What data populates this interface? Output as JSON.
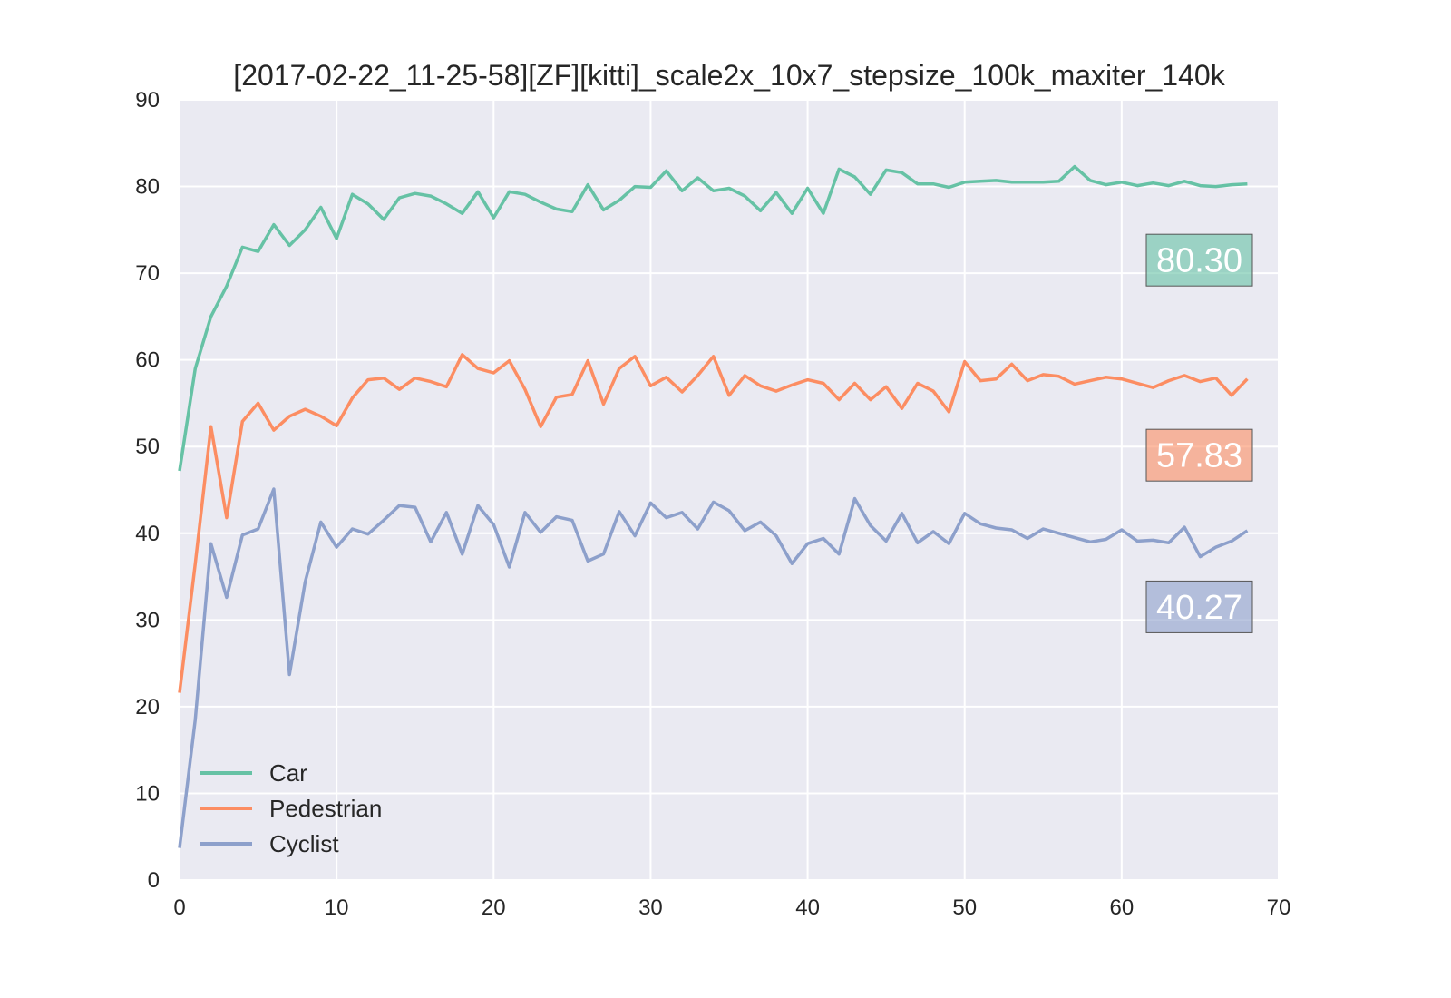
{
  "chart_data": {
    "type": "line",
    "title": "[2017-02-22_11-25-58][ZF][kitti]_scale2x_10x7_stepsize_100k_maxiter_140k",
    "xlabel": "",
    "ylabel": "",
    "xlim": [
      0,
      70
    ],
    "ylim": [
      0,
      90
    ],
    "x_ticks": [
      "0",
      "10",
      "20",
      "30",
      "40",
      "50",
      "60",
      "70"
    ],
    "y_ticks": [
      "0",
      "10",
      "20",
      "30",
      "40",
      "50",
      "60",
      "70",
      "80",
      "90"
    ],
    "grid": true,
    "legend_position": "bottom-left",
    "x": [
      0,
      1,
      2,
      3,
      4,
      5,
      6,
      7,
      8,
      9,
      10,
      11,
      12,
      13,
      14,
      15,
      16,
      17,
      18,
      19,
      20,
      21,
      22,
      23,
      24,
      25,
      26,
      27,
      28,
      29,
      30,
      31,
      32,
      33,
      34,
      35,
      36,
      37,
      38,
      39,
      40,
      41,
      42,
      43,
      44,
      45,
      46,
      47,
      48,
      49,
      50,
      51,
      52,
      53,
      54,
      55,
      56,
      57,
      58,
      59,
      60,
      61,
      62,
      63,
      64,
      65,
      66,
      67,
      68
    ],
    "series": [
      {
        "name": "Car",
        "color": "#66c2a5",
        "final_label": "80.30",
        "values": [
          47.2,
          59.0,
          65.0,
          68.5,
          73.0,
          72.5,
          75.6,
          73.2,
          75.0,
          77.6,
          74.0,
          79.1,
          78.0,
          76.2,
          78.7,
          79.2,
          78.9,
          78.0,
          76.9,
          79.4,
          76.4,
          79.4,
          79.1,
          78.2,
          77.4,
          77.1,
          80.2,
          77.3,
          78.4,
          80.0,
          79.9,
          81.8,
          79.5,
          81.0,
          79.5,
          79.8,
          78.9,
          77.2,
          79.3,
          76.9,
          79.8,
          76.9,
          82.0,
          81.1,
          79.1,
          81.9,
          81.6,
          80.3,
          80.3,
          79.9,
          80.5,
          80.6,
          80.7,
          80.5,
          80.5,
          80.5,
          80.6,
          82.3,
          80.7,
          80.2,
          80.5,
          80.1,
          80.4,
          80.1,
          80.6,
          80.1,
          80.0,
          80.2,
          80.3
        ]
      },
      {
        "name": "Pedestrian",
        "color": "#fc8d62",
        "final_label": "57.83",
        "values": [
          21.6,
          36.5,
          52.3,
          41.8,
          52.9,
          55.0,
          51.9,
          53.5,
          54.3,
          53.5,
          52.4,
          55.6,
          57.7,
          57.9,
          56.6,
          57.9,
          57.5,
          56.9,
          60.6,
          59.0,
          58.5,
          59.9,
          56.6,
          52.3,
          55.7,
          56.0,
          59.9,
          54.9,
          59.0,
          60.4,
          57.0,
          58.0,
          56.3,
          58.2,
          60.4,
          55.9,
          58.2,
          57.0,
          56.4,
          57.1,
          57.7,
          57.3,
          55.4,
          57.3,
          55.4,
          56.9,
          54.4,
          57.3,
          56.4,
          54.0,
          59.8,
          57.6,
          57.8,
          59.5,
          57.6,
          58.3,
          58.1,
          57.2,
          57.6,
          58.0,
          57.8,
          57.3,
          56.8,
          57.6,
          58.2,
          57.5,
          57.9,
          55.9,
          57.8
        ]
      },
      {
        "name": "Cyclist",
        "color": "#8da0cb",
        "final_label": "40.27",
        "values": [
          3.7,
          18.5,
          38.8,
          32.6,
          39.8,
          40.5,
          45.1,
          23.7,
          34.4,
          41.3,
          38.4,
          40.5,
          39.9,
          41.5,
          43.2,
          43.0,
          39.0,
          42.4,
          37.6,
          43.2,
          41.0,
          36.1,
          42.4,
          40.1,
          41.9,
          41.5,
          36.8,
          37.6,
          42.5,
          39.7,
          43.5,
          41.8,
          42.4,
          40.5,
          43.6,
          42.6,
          40.3,
          41.3,
          39.7,
          36.5,
          38.8,
          39.4,
          37.6,
          44.0,
          40.9,
          39.1,
          42.3,
          38.9,
          40.2,
          38.8,
          42.3,
          41.1,
          40.6,
          40.4,
          39.4,
          40.5,
          40.0,
          39.5,
          39.0,
          39.3,
          40.4,
          39.1,
          39.2,
          38.9,
          40.7,
          37.3,
          38.4,
          39.1,
          40.3
        ]
      }
    ]
  }
}
